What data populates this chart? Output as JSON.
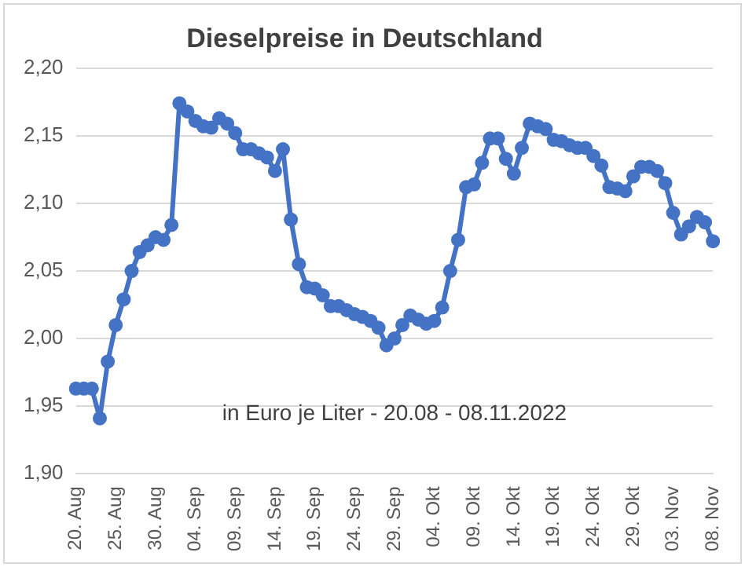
{
  "chart_data": {
    "type": "line",
    "title": "Dieselpreise in Deutschland",
    "categories": [
      "20. Aug",
      null,
      null,
      null,
      null,
      "25. Aug",
      null,
      null,
      null,
      null,
      "30. Aug",
      null,
      null,
      null,
      null,
      "04. Sep",
      null,
      null,
      null,
      null,
      "09. Sep",
      null,
      null,
      null,
      null,
      "14. Sep",
      null,
      null,
      null,
      null,
      "19. Sep",
      null,
      null,
      null,
      null,
      "24. Sep",
      null,
      null,
      null,
      null,
      "29. Sep",
      null,
      null,
      null,
      null,
      "04. Okt",
      null,
      null,
      null,
      null,
      "09. Okt",
      null,
      null,
      null,
      null,
      "14. Okt",
      null,
      null,
      null,
      null,
      "19. Okt",
      null,
      null,
      null,
      null,
      "24. Okt",
      null,
      null,
      null,
      null,
      "29. Okt",
      null,
      null,
      null,
      null,
      "03. Nov",
      null,
      null,
      null,
      null,
      "08. Nov"
    ],
    "series": [
      {
        "color": "#4472c4",
        "values": [
          1.963,
          1.963,
          1.963,
          1.941,
          1.983,
          2.01,
          2.029,
          2.05,
          2.064,
          2.069,
          2.075,
          2.073,
          2.084,
          2.174,
          2.168,
          2.161,
          2.157,
          2.156,
          2.163,
          2.159,
          2.152,
          2.14,
          2.14,
          2.137,
          2.134,
          2.124,
          2.14,
          2.088,
          2.055,
          2.038,
          2.037,
          2.032,
          2.024,
          2.024,
          2.021,
          2.018,
          2.016,
          2.013,
          2.008,
          1.995,
          2.0,
          2.01,
          2.017,
          2.014,
          2.011,
          2.013,
          2.023,
          2.05,
          2.073,
          2.112,
          2.114,
          2.13,
          2.148,
          2.148,
          2.133,
          2.122,
          2.141,
          2.159,
          2.157,
          2.155,
          2.147,
          2.146,
          2.143,
          2.141,
          2.141,
          2.135,
          2.128,
          2.112,
          2.111,
          2.109,
          2.12,
          2.127,
          2.127,
          2.124,
          2.115,
          2.093,
          2.077,
          2.083,
          2.09,
          2.086,
          2.072
        ]
      }
    ],
    "ylim": [
      1.9,
      2.2
    ],
    "yticks": [
      {
        "value": 1.9,
        "label": "1,90"
      },
      {
        "value": 1.95,
        "label": "1,95"
      },
      {
        "value": 2.0,
        "label": "2,00"
      },
      {
        "value": 2.05,
        "label": "2,05"
      },
      {
        "value": 2.1,
        "label": "2,10"
      },
      {
        "value": 2.15,
        "label": "2,15"
      },
      {
        "value": 2.2,
        "label": "2,20"
      }
    ],
    "grid": "y",
    "legend": false,
    "marker": "circle",
    "line_style": "solid",
    "annotations": [
      "in Euro je Liter - 20.08 - 08.11.2022"
    ]
  }
}
